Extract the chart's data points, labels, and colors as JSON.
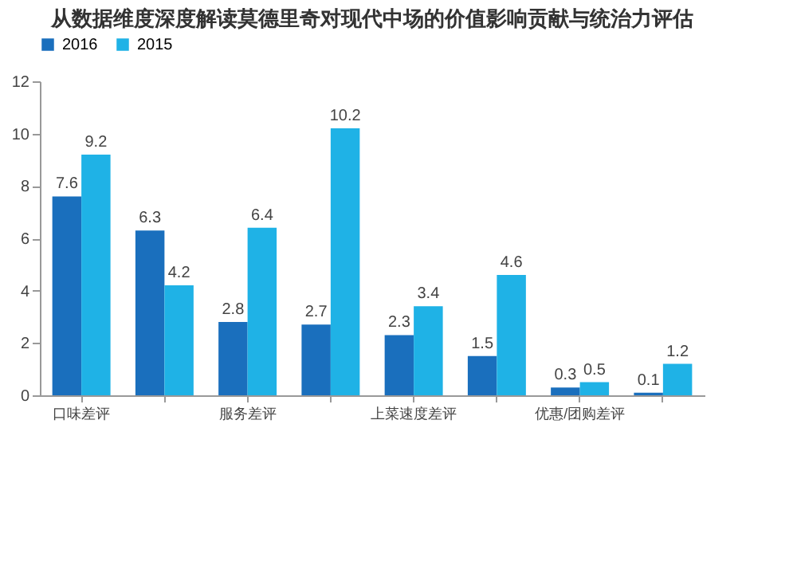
{
  "chart_data": {
    "type": "bar",
    "title": "从数据维度深度解读莫德里奇对现代中场的价值影响贡献与统治力评估",
    "categories": [
      "口味差评",
      null,
      "服务差评",
      null,
      "上菜速度差评",
      null,
      "优惠/团购差评",
      null
    ],
    "series": [
      {
        "name": "2016",
        "color": "#1a6fbd",
        "values": [
          7.6,
          6.3,
          2.8,
          2.7,
          2.3,
          1.5,
          0.3,
          0.1
        ]
      },
      {
        "name": "2015",
        "color": "#1fb2e6",
        "values": [
          9.2,
          4.2,
          6.4,
          10.2,
          3.4,
          4.6,
          0.5,
          1.2
        ]
      }
    ],
    "ylim": [
      0,
      12
    ],
    "yticks": [
      0,
      2,
      4,
      6,
      8,
      10,
      12
    ],
    "data_labels": true,
    "grid": false,
    "legend": "top"
  }
}
